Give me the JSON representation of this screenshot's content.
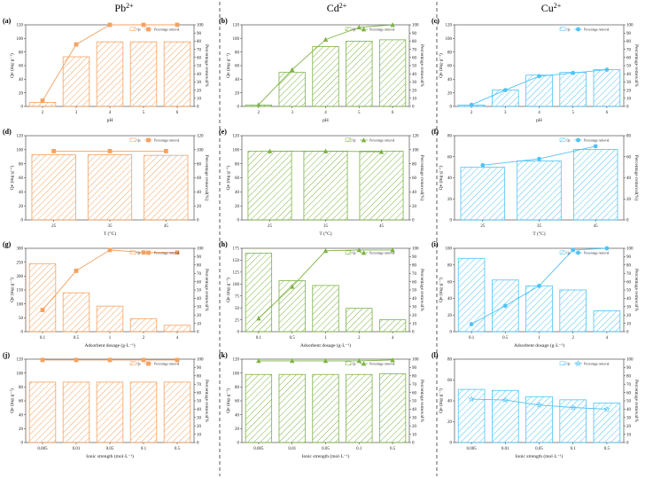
{
  "ions": [
    {
      "label": "Pb",
      "charge": "2+",
      "color": "#f4a261"
    },
    {
      "label": "Cd",
      "charge": "2+",
      "color": "#7cb342"
    },
    {
      "label": "Cu",
      "charge": "2+",
      "color": "#4fc3f7"
    }
  ],
  "chart_data": [
    {
      "id": "a",
      "label": "(a)",
      "type": "bar+line",
      "ion": "Pb",
      "categories": [
        "2",
        "3",
        "4",
        "5",
        "6"
      ],
      "bars": [
        6,
        73,
        95,
        95,
        95
      ],
      "line": [
        7,
        76,
        100,
        100,
        100
      ],
      "marker": "square",
      "ylim": [
        0,
        120
      ],
      "y2lim": [
        0,
        100
      ],
      "xlabel": "pH",
      "ylabel": "Qe (mg·g⁻¹)",
      "y2label": "Percentage removal%",
      "legend": [
        "Qe",
        "Percentage removal"
      ]
    },
    {
      "id": "b",
      "label": "(b)",
      "type": "bar+line",
      "ion": "Cd",
      "categories": [
        "2",
        "3",
        "4",
        "5",
        "6"
      ],
      "bars": [
        2,
        50,
        88,
        96,
        98
      ],
      "line": [
        2,
        45,
        82,
        97,
        100
      ],
      "marker": "triangle",
      "ylim": [
        0,
        120
      ],
      "y2lim": [
        0,
        100
      ],
      "xlabel": "pH",
      "ylabel": "Qe (mg·g⁻¹)",
      "y2label": "Percentage removal%",
      "legend": [
        "Qe",
        "Percentage removal"
      ]
    },
    {
      "id": "c",
      "label": "(c)",
      "type": "bar+line",
      "ion": "Cu",
      "categories": [
        "2",
        "3",
        "4",
        "5",
        "6"
      ],
      "bars": [
        2,
        24,
        46,
        50,
        54
      ],
      "line": [
        2,
        20,
        37,
        41,
        45
      ],
      "marker": "circle",
      "ylim": [
        0,
        120
      ],
      "y2lim": [
        0,
        100
      ],
      "xlabel": "pH",
      "ylabel": "Qe (mg·g⁻¹)",
      "y2label": "Percentage removal%",
      "legend": [
        "Qe",
        "Percentage removal"
      ]
    },
    {
      "id": "d",
      "label": "(d)",
      "type": "bar+line",
      "ion": "Pb",
      "categories": [
        "25",
        "35",
        "45"
      ],
      "bars": [
        93,
        93,
        92
      ],
      "line": [
        98,
        98,
        98
      ],
      "marker": "square",
      "ylim": [
        0,
        120
      ],
      "y2lim": [
        0,
        120
      ],
      "xlabel": "T (°C)",
      "ylabel": "Qe (mg·g⁻¹)",
      "y2label": "Percentage removal(%)",
      "legend": [
        "Qe",
        "Percentage removal"
      ]
    },
    {
      "id": "e",
      "label": "(e)",
      "type": "bar+line",
      "ion": "Cd",
      "categories": [
        "25",
        "35",
        "45"
      ],
      "bars": [
        98,
        98,
        98
      ],
      "line": [
        98,
        98,
        97
      ],
      "marker": "triangle",
      "ylim": [
        0,
        120
      ],
      "y2lim": [
        0,
        120
      ],
      "xlabel": "T (°C)",
      "ylabel": "Qe (mg·g⁻¹)",
      "y2label": "Percentage removal(%)",
      "legend": [
        "Qe",
        "Percentage removal"
      ]
    },
    {
      "id": "f",
      "label": "(f)",
      "type": "bar+line",
      "ion": "Cu",
      "categories": [
        "25",
        "35",
        "45"
      ],
      "bars": [
        50,
        56,
        67
      ],
      "line": [
        52,
        58,
        70
      ],
      "marker": "circle",
      "ylim": [
        0,
        80
      ],
      "y2lim": [
        0,
        80
      ],
      "xlabel": "T (°C)",
      "ylabel": "Qe (mg·g⁻¹)",
      "y2label": "Percentage removal(%)",
      "legend": [
        "Qe",
        "Percentage removal"
      ]
    },
    {
      "id": "g",
      "label": "(g)",
      "type": "bar+line",
      "ion": "Pb",
      "categories": [
        "0.1",
        "0.5",
        "1",
        "2",
        "4"
      ],
      "bars": [
        245,
        140,
        92,
        47,
        23
      ],
      "line": [
        26,
        73,
        98,
        95,
        95
      ],
      "marker": "square",
      "ylim": [
        0,
        300
      ],
      "y2lim": [
        0,
        100
      ],
      "xlabel": "Adsorbent dosage (g·L⁻¹)",
      "ylabel": "Qe (mg·g⁻¹)",
      "y2label": "Percentage removal%",
      "legend": [
        "Qe",
        "Percentage removal"
      ]
    },
    {
      "id": "h",
      "label": "(h)",
      "type": "bar+line",
      "ion": "Cd",
      "categories": [
        "0.1",
        "0.5",
        "1",
        "2",
        "4"
      ],
      "bars": [
        165,
        107,
        97,
        49,
        25
      ],
      "line": [
        16,
        54,
        97,
        98,
        98
      ],
      "marker": "triangle",
      "ylim": [
        0,
        175
      ],
      "y2lim": [
        0,
        100
      ],
      "xlabel": "Adsorbent dosage (g·L⁻¹)",
      "ylabel": "Qe (mg·g⁻¹)",
      "y2label": "Percentage removal%",
      "legend": [
        "Qe",
        "Percentage removal"
      ]
    },
    {
      "id": "i",
      "label": "(i)",
      "type": "bar+line",
      "ion": "Cu",
      "categories": [
        "0.1",
        "0.5",
        "1",
        "2",
        "4"
      ],
      "bars": [
        88,
        62,
        55,
        50,
        25
      ],
      "line": [
        9,
        31,
        55,
        98,
        100
      ],
      "marker": "circle",
      "ylim": [
        0,
        100
      ],
      "y2lim": [
        0,
        100
      ],
      "xlabel": "Adsorbent dosage (g·L⁻¹)",
      "ylabel": "Qe (mg·g⁻¹)",
      "y2label": "Percentage removal%",
      "legend": [
        "Qe",
        "Percentage removal"
      ]
    },
    {
      "id": "j",
      "label": "(j)",
      "type": "bar+line",
      "ion": "Pb",
      "categories": [
        "0.005",
        "0.01",
        "0.05",
        "0.1",
        "0.5"
      ],
      "bars": [
        87,
        87,
        87,
        87,
        87
      ],
      "line": [
        99,
        99,
        99,
        99,
        99
      ],
      "marker": "square",
      "ylim": [
        0,
        120
      ],
      "y2lim": [
        0,
        100
      ],
      "xlabel": "Ionic strength (mol·L⁻¹)",
      "ylabel": "Qe (mg·g⁻¹)",
      "y2label": "Percentage removal%",
      "legend": [
        "Qe",
        "Percentage removal"
      ]
    },
    {
      "id": "k",
      "label": "(k)",
      "type": "bar+line",
      "ion": "Cd",
      "categories": [
        "0.005",
        "0.01",
        "0.05",
        "0.1",
        "0.5"
      ],
      "bars": [
        98,
        98,
        98,
        98,
        99
      ],
      "line": [
        98,
        98,
        98,
        98,
        99
      ],
      "marker": "triangle",
      "ylim": [
        0,
        120
      ],
      "y2lim": [
        0,
        100
      ],
      "xlabel": "Ionic strength (mol·L⁻¹)",
      "ylabel": "Qe (mg·g⁻¹)",
      "y2label": "Percentage removal%",
      "legend": [
        "Qe",
        "Percentage removal"
      ]
    },
    {
      "id": "l",
      "label": "(l)",
      "type": "bar+line",
      "ion": "Cu",
      "categories": [
        "0.005",
        "0.01",
        "0.05",
        "0.1",
        "0.5"
      ],
      "bars": [
        51,
        50,
        44,
        41,
        38
      ],
      "line": [
        52,
        51,
        45,
        42,
        40
      ],
      "marker": "star",
      "ylim": [
        0,
        80
      ],
      "y2lim": [
        0,
        100
      ],
      "xlabel": "Ionic strength (mol·L⁻¹)",
      "ylabel": "Qe (mg·g⁻¹)",
      "y2label": "Percentage removal%",
      "legend": [
        "Qe",
        "Percentage removal"
      ]
    }
  ]
}
